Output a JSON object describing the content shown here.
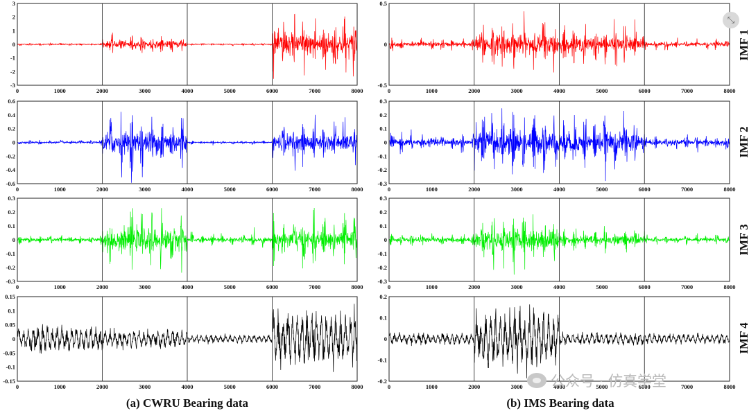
{
  "chart_data": [
    {
      "type": "line",
      "series": [
        {
          "name": "IMF 1",
          "color": "#ff0000"
        }
      ],
      "x_range": [
        0,
        8000
      ],
      "ylim": [
        -3,
        3
      ],
      "yticks": [
        "3",
        "2",
        "1",
        "0",
        "-1",
        "-2",
        "-3"
      ],
      "xticks": [
        "0",
        "1000",
        "2000",
        "3000",
        "4000",
        "5000",
        "6000",
        "7000",
        "8000"
      ],
      "segments": [
        {
          "from": 0,
          "to": 2000,
          "amp": 0.12
        },
        {
          "from": 2000,
          "to": 4000,
          "amp": 0.75
        },
        {
          "from": 4000,
          "to": 6000,
          "amp": 0.1
        },
        {
          "from": 6000,
          "to": 8000,
          "amp": 2.6
        }
      ]
    },
    {
      "type": "line",
      "series": [
        {
          "name": "IMF 1",
          "color": "#ff0000"
        }
      ],
      "x_range": [
        0,
        8000
      ],
      "ylim": [
        -0.75,
        0.75
      ],
      "yticks": [
        "0.5",
        "0",
        "-0.5"
      ],
      "xticks": [
        "0",
        "1000",
        "2000",
        "3000",
        "4000",
        "5000",
        "6000",
        "7000",
        "8000"
      ],
      "segments": [
        {
          "from": 0,
          "to": 2000,
          "amp": 0.12
        },
        {
          "from": 2000,
          "to": 4000,
          "amp": 0.55
        },
        {
          "from": 4000,
          "to": 6000,
          "amp": 0.4
        },
        {
          "from": 6000,
          "to": 8000,
          "amp": 0.1
        }
      ]
    },
    {
      "type": "line",
      "series": [
        {
          "name": "IMF 2",
          "color": "#0000ff"
        }
      ],
      "x_range": [
        0,
        8000
      ],
      "ylim": [
        -0.6,
        0.6
      ],
      "yticks": [
        "0.6",
        "0.4",
        "0.2",
        "0",
        "-0.2",
        "-0.4",
        "-0.6"
      ],
      "xticks": [
        "0",
        "1000",
        "2000",
        "3000",
        "4000",
        "5000",
        "6000",
        "7000",
        "8000"
      ],
      "segments": [
        {
          "from": 0,
          "to": 2000,
          "amp": 0.04
        },
        {
          "from": 2000,
          "to": 4000,
          "amp": 0.5
        },
        {
          "from": 4000,
          "to": 6000,
          "amp": 0.03
        },
        {
          "from": 6000,
          "to": 8000,
          "amp": 0.35
        }
      ]
    },
    {
      "type": "line",
      "series": [
        {
          "name": "IMF 2",
          "color": "#0000ff"
        }
      ],
      "x_range": [
        0,
        8000
      ],
      "ylim": [
        -0.3,
        0.3
      ],
      "yticks": [
        "0.3",
        "0.2",
        "0.1",
        "0",
        "-0.1",
        "-0.2",
        "-0.3"
      ],
      "xticks": [
        "0",
        "1000",
        "2000",
        "3000",
        "4000",
        "5000",
        "6000",
        "7000",
        "8000"
      ],
      "segments": [
        {
          "from": 0,
          "to": 2000,
          "amp": 0.08
        },
        {
          "from": 2000,
          "to": 4000,
          "amp": 0.28
        },
        {
          "from": 4000,
          "to": 6000,
          "amp": 0.22
        },
        {
          "from": 6000,
          "to": 8000,
          "amp": 0.06
        }
      ]
    },
    {
      "type": "line",
      "series": [
        {
          "name": "IMF 3",
          "color": "#00ee00"
        }
      ],
      "x_range": [
        0,
        8000
      ],
      "ylim": [
        -0.3,
        0.3
      ],
      "yticks": [
        "0.3",
        "0.2",
        "0.1",
        "0",
        "-0.1",
        "-0.2",
        "-0.3"
      ],
      "xticks": [
        "0",
        "1000",
        "2000",
        "3000",
        "4000",
        "5000",
        "6000",
        "7000",
        "8000"
      ],
      "segments": [
        {
          "from": 0,
          "to": 2000,
          "amp": 0.04
        },
        {
          "from": 2000,
          "to": 4000,
          "amp": 0.24
        },
        {
          "from": 4000,
          "to": 6000,
          "amp": 0.05
        },
        {
          "from": 6000,
          "to": 8000,
          "amp": 0.2
        }
      ]
    },
    {
      "type": "line",
      "series": [
        {
          "name": "IMF 3",
          "color": "#00ee00"
        }
      ],
      "x_range": [
        0,
        8000
      ],
      "ylim": [
        -0.3,
        0.3
      ],
      "yticks": [
        "0.3",
        "0.2",
        "0.1",
        "0",
        "-0.1",
        "-0.2",
        "-0.3"
      ],
      "xticks": [
        "0",
        "1000",
        "2000",
        "3000",
        "4000",
        "5000",
        "6000",
        "7000",
        "8000"
      ],
      "segments": [
        {
          "from": 0,
          "to": 2000,
          "amp": 0.05
        },
        {
          "from": 2000,
          "to": 4000,
          "amp": 0.22
        },
        {
          "from": 4000,
          "to": 6000,
          "amp": 0.1
        },
        {
          "from": 6000,
          "to": 8000,
          "amp": 0.04
        }
      ]
    },
    {
      "type": "line",
      "series": [
        {
          "name": "IMF 4",
          "color": "#000000"
        }
      ],
      "x_range": [
        0,
        8000
      ],
      "ylim": [
        -0.15,
        0.15
      ],
      "yticks": [
        "0.15",
        "0.1",
        "0.05",
        "0",
        "-0.05",
        "-0.1",
        "-0.15"
      ],
      "xticks": [
        "0",
        "1000",
        "2000",
        "3000",
        "4000",
        "5000",
        "6000",
        "7000",
        "8000"
      ],
      "segments": [
        {
          "from": 0,
          "to": 2000,
          "amp": 0.05
        },
        {
          "from": 2000,
          "to": 4000,
          "amp": 0.035
        },
        {
          "from": 4000,
          "to": 6000,
          "amp": 0.015
        },
        {
          "from": 6000,
          "to": 8000,
          "amp": 0.1
        }
      ]
    },
    {
      "type": "line",
      "series": [
        {
          "name": "IMF 4",
          "color": "#000000"
        }
      ],
      "x_range": [
        0,
        8000
      ],
      "ylim": [
        -0.2,
        0.2
      ],
      "yticks": [
        "0.2",
        "0.1",
        "0",
        "-0.1",
        "-0.2"
      ],
      "xticks": [
        "0",
        "1000",
        "2000",
        "3000",
        "4000",
        "5000",
        "6000",
        "7000",
        "8000"
      ],
      "segments": [
        {
          "from": 0,
          "to": 2000,
          "amp": 0.03
        },
        {
          "from": 2000,
          "to": 4000,
          "amp": 0.14
        },
        {
          "from": 4000,
          "to": 6000,
          "amp": 0.03
        },
        {
          "from": 6000,
          "to": 8000,
          "amp": 0.025
        }
      ]
    }
  ],
  "captions": {
    "left": "(a) CWRU Bearing data",
    "right": "(b) IMS Bearing data"
  },
  "imf_labels": [
    "IMF 1",
    "IMF 2",
    "IMF 3",
    "IMF 4"
  ],
  "watermark": {
    "text": "公众号 · 仿真学堂",
    "icon": "wechat-icon"
  },
  "corner_button": {
    "icon": "expand-icon",
    "glyph": "⤡"
  }
}
